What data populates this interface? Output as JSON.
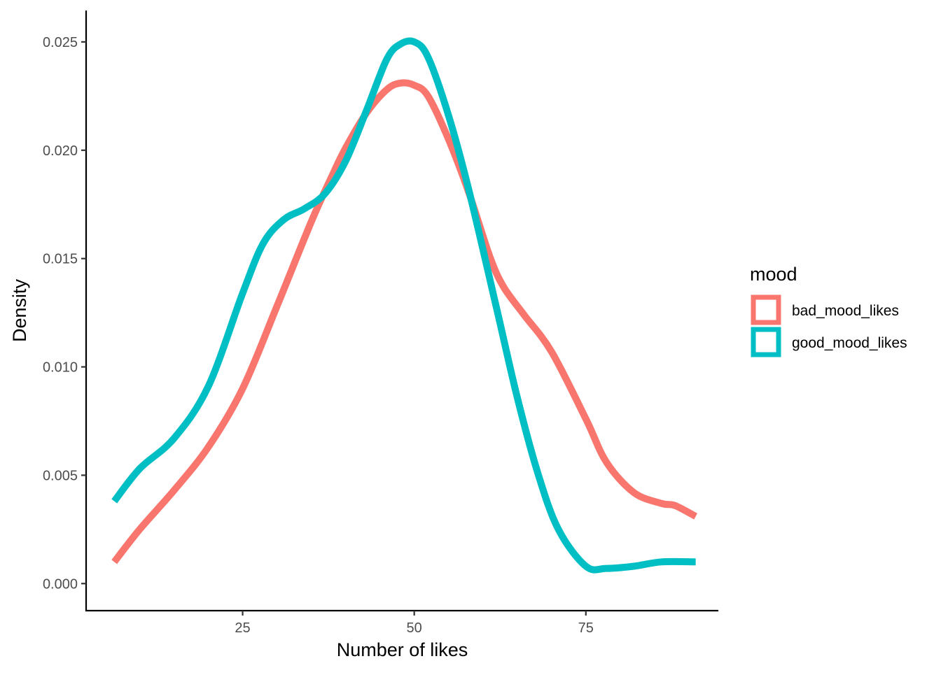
{
  "chart_data": {
    "type": "line",
    "title": "",
    "xlabel": "Number of likes",
    "ylabel": "Density",
    "xlim": [
      2.2,
      94.3
    ],
    "ylim": [
      -0.00125,
      0.02645
    ],
    "x_ticks": [
      25,
      50,
      75
    ],
    "y_ticks": [
      0.0,
      0.005,
      0.01,
      0.015,
      0.02,
      0.025
    ],
    "y_tick_labels": [
      "0.000",
      "0.005",
      "0.010",
      "0.015",
      "0.020",
      "0.025"
    ],
    "x_tick_labels": [
      "25",
      "50",
      "75"
    ],
    "grid": false,
    "legend": {
      "title": "mood",
      "position": "right",
      "entries": [
        "bad_mood_likes",
        "good_mood_likes"
      ]
    },
    "series": [
      {
        "name": "bad_mood_likes",
        "color": "#F8766D",
        "x": [
          6.3,
          10,
          15,
          20,
          25,
          30,
          35,
          38,
          40,
          43,
          46,
          48,
          50,
          52,
          55,
          58,
          61,
          63,
          66,
          70,
          75,
          78,
          82,
          86,
          88,
          91
        ],
        "y": [
          0.001,
          0.0025,
          0.0043,
          0.0063,
          0.009,
          0.0128,
          0.0167,
          0.0188,
          0.0201,
          0.0217,
          0.0228,
          0.0231,
          0.023,
          0.0225,
          0.0205,
          0.018,
          0.0151,
          0.0137,
          0.0124,
          0.0107,
          0.0076,
          0.0056,
          0.0042,
          0.0037,
          0.0036,
          0.0031
        ]
      },
      {
        "name": "good_mood_likes",
        "color": "#00BFC4",
        "x": [
          6.3,
          10,
          15,
          20,
          25,
          28,
          31,
          34,
          37,
          40,
          43,
          46,
          48,
          50,
          52,
          55,
          58,
          62,
          65,
          68,
          71,
          75,
          78,
          82,
          86,
          91
        ],
        "y": [
          0.0038,
          0.0053,
          0.0067,
          0.0091,
          0.0134,
          0.0157,
          0.0168,
          0.0173,
          0.018,
          0.0195,
          0.0218,
          0.0242,
          0.0249,
          0.025,
          0.0243,
          0.0216,
          0.0181,
          0.0127,
          0.0086,
          0.0051,
          0.0025,
          0.0008,
          0.0007,
          0.0008,
          0.001,
          0.001
        ]
      }
    ]
  }
}
